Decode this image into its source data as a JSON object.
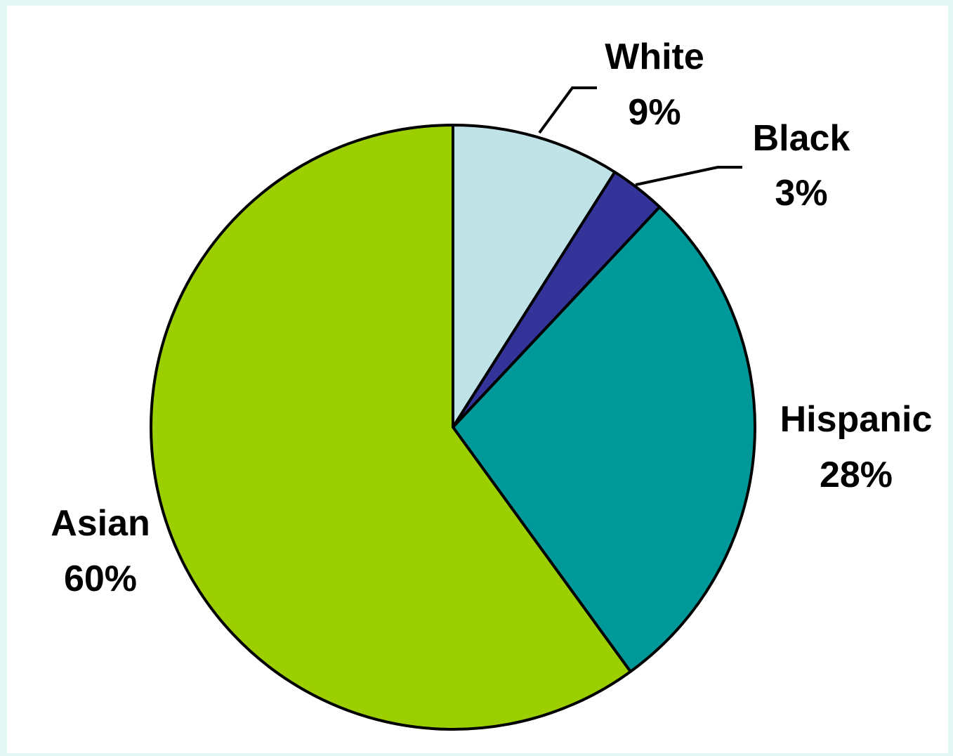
{
  "chart_data": {
    "type": "pie",
    "title": "",
    "start_angle_deg": 0,
    "direction": "clockwise",
    "slices": [
      {
        "label": "White",
        "value": 9,
        "value_label": "9%",
        "color": "#bfe3e6"
      },
      {
        "label": "Black",
        "value": 3,
        "value_label": "3%",
        "color": "#33339a"
      },
      {
        "label": "Hispanic",
        "value": 28,
        "value_label": "28%",
        "color": "#009999"
      },
      {
        "label": "Asian",
        "value": 60,
        "value_label": "60%",
        "color": "#9ccf00"
      }
    ],
    "border_color": "#000000",
    "background_color": "#e3f7f5",
    "plot_background_color": "#ffffff"
  }
}
